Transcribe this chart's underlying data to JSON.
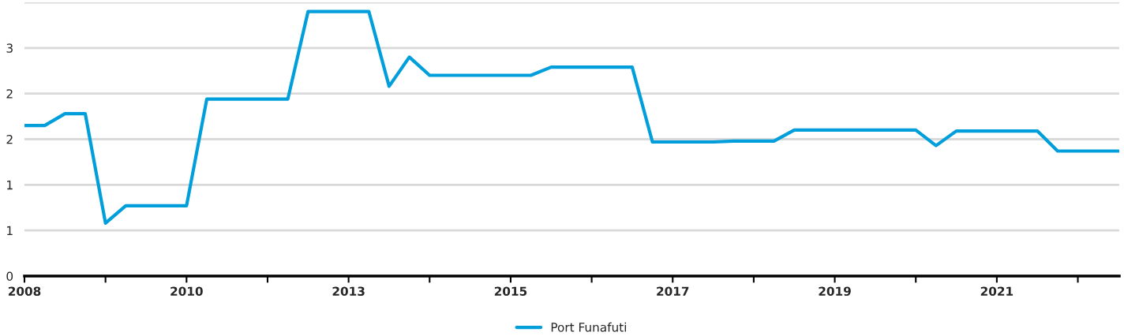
{
  "chart_data": {
    "type": "line",
    "x": [
      2008,
      2008.28125,
      2008.5625,
      2008.84375,
      2009.125,
      2009.40625,
      2009.6875,
      2009.96875,
      2010.25,
      2010.53125,
      2010.8125,
      2011.09375,
      2011.375,
      2011.65625,
      2011.9375,
      2012.21875,
      2012.5,
      2012.78125,
      2013.0625,
      2013.34375,
      2013.625,
      2013.90625,
      2014.1875,
      2014.46875,
      2014.75,
      2015.03125,
      2015.3125,
      2015.59375,
      2015.875,
      2016.15625,
      2016.4375,
      2016.71875,
      2017,
      2017.28125,
      2017.5625,
      2017.84375,
      2018.125,
      2018.40625,
      2018.6875,
      2018.96875,
      2019.25,
      2019.53125,
      2019.8125,
      2020.09375,
      2020.375,
      2020.65625,
      2020.9375,
      2021.21875,
      2021.5,
      2021.78125,
      2022.0625,
      2022.34375,
      2022.625,
      2022.90625,
      2023.1875
    ],
    "series": [
      {
        "name": "Port Funafuti",
        "color": "#009fdb",
        "values": [
          1.65,
          1.65,
          1.78,
          1.78,
          0.58,
          0.77,
          0.77,
          0.77,
          0.77,
          1.94,
          1.94,
          1.94,
          1.94,
          1.94,
          2.9,
          2.9,
          2.9,
          2.9,
          2.08,
          2.4,
          2.2,
          2.2,
          2.2,
          2.2,
          2.2,
          2.2,
          2.29,
          2.29,
          2.29,
          2.29,
          2.29,
          1.47,
          1.47,
          1.47,
          1.47,
          1.48,
          1.48,
          1.48,
          1.6,
          1.6,
          1.6,
          1.6,
          1.6,
          1.6,
          1.6,
          1.43,
          1.59,
          1.59,
          1.59,
          1.59,
          1.59,
          1.37,
          1.37,
          1.37,
          1.37
        ]
      }
    ],
    "xlim": [
      2008,
      2023.2
    ],
    "xticks": [
      {
        "value": 2008,
        "label": "2008"
      },
      {
        "value": 2009.125,
        "label": null
      },
      {
        "value": 2010.25,
        "label": "2010"
      },
      {
        "value": 2011.375,
        "label": null
      },
      {
        "value": 2012.5,
        "label": "2013"
      },
      {
        "value": 2013.625,
        "label": null
      },
      {
        "value": 2014.75,
        "label": "2015"
      },
      {
        "value": 2015.875,
        "label": null
      },
      {
        "value": 2017,
        "label": "2017"
      },
      {
        "value": 2018.125,
        "label": null
      },
      {
        "value": 2019.25,
        "label": "2019"
      },
      {
        "value": 2020.375,
        "label": null
      },
      {
        "value": 2021.5,
        "label": "2021"
      },
      {
        "value": 2022.625,
        "label": null
      }
    ],
    "yticks": [
      {
        "value": 0,
        "label": "0"
      },
      {
        "value": 0.5,
        "label": "1"
      },
      {
        "value": 1,
        "label": "1"
      },
      {
        "value": 1.5,
        "label": "2"
      },
      {
        "value": 2,
        "label": "2"
      },
      {
        "value": 2.5,
        "label": "3"
      },
      {
        "value": 3,
        "label": null
      }
    ],
    "ylim": [
      0,
      3
    ],
    "grid": "y",
    "legend": "bottom",
    "marker": "none",
    "line_style": "solid"
  }
}
